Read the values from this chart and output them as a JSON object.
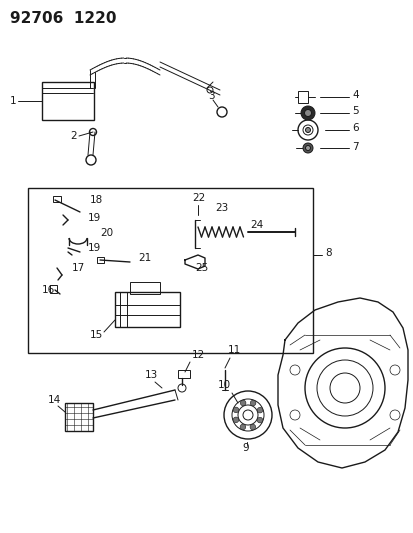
{
  "title": "92706  1220",
  "bg_color": "#ffffff",
  "fg_color": "#1a1a1a",
  "title_fontsize": 11,
  "label_fontsize": 7.5,
  "fig_width": 4.14,
  "fig_height": 5.33,
  "dpi": 100
}
